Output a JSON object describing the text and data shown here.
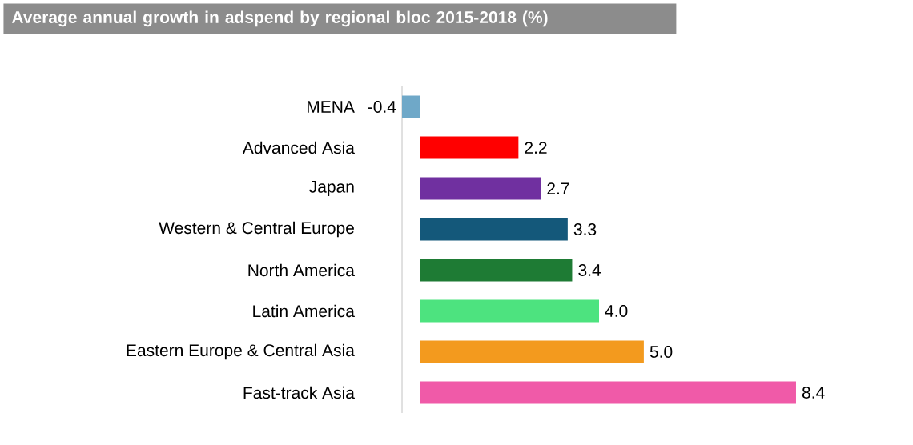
{
  "chart_data": {
    "type": "bar",
    "orientation": "horizontal",
    "title": "Average annual growth in adspend by regional bloc 2015-2018 (%)",
    "categories": [
      "MENA",
      "Advanced Asia",
      "Japan",
      "Western & Central Europe",
      "North America",
      "Latin America",
      "Eastern Europe & Central Asia",
      "Fast-track Asia"
    ],
    "values": [
      -0.4,
      2.2,
      2.7,
      3.3,
      3.4,
      4.0,
      5.0,
      8.4
    ],
    "colors": [
      "#6fa8c8",
      "#ff0000",
      "#7030a0",
      "#14587a",
      "#1e7b34",
      "#4de37f",
      "#f39a1e",
      "#f05aa8"
    ],
    "value_labels": [
      "-0.4",
      "2.2",
      "2.7",
      "3.3",
      "3.4",
      "4.0",
      "5.0",
      "8.4"
    ]
  }
}
